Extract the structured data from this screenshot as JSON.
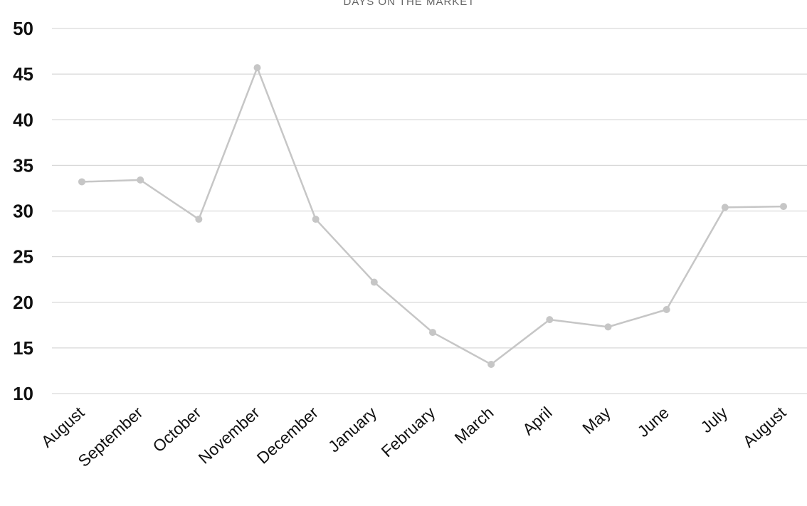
{
  "chart_data": {
    "type": "line",
    "title": "DAYS ON THE MARKET",
    "categories": [
      "August",
      "September",
      "October",
      "November",
      "December",
      "January",
      "February",
      "March",
      "April",
      "May",
      "June",
      "July",
      "August"
    ],
    "series": [
      {
        "values": [
          33.2,
          33.4,
          29.1,
          45.7,
          29.1,
          22.2,
          16.7,
          13.2,
          18.1,
          17.3,
          19.2,
          30.4,
          30.5
        ]
      }
    ],
    "ylim": [
      10,
      50
    ],
    "yticks": [
      "10",
      "15",
      "20",
      "25",
      "30",
      "35",
      "40",
      "45",
      "50"
    ],
    "grid": true,
    "colors": {
      "series": "#c6c6c6",
      "grid": "#d9d9d9",
      "text": "#111111"
    }
  }
}
